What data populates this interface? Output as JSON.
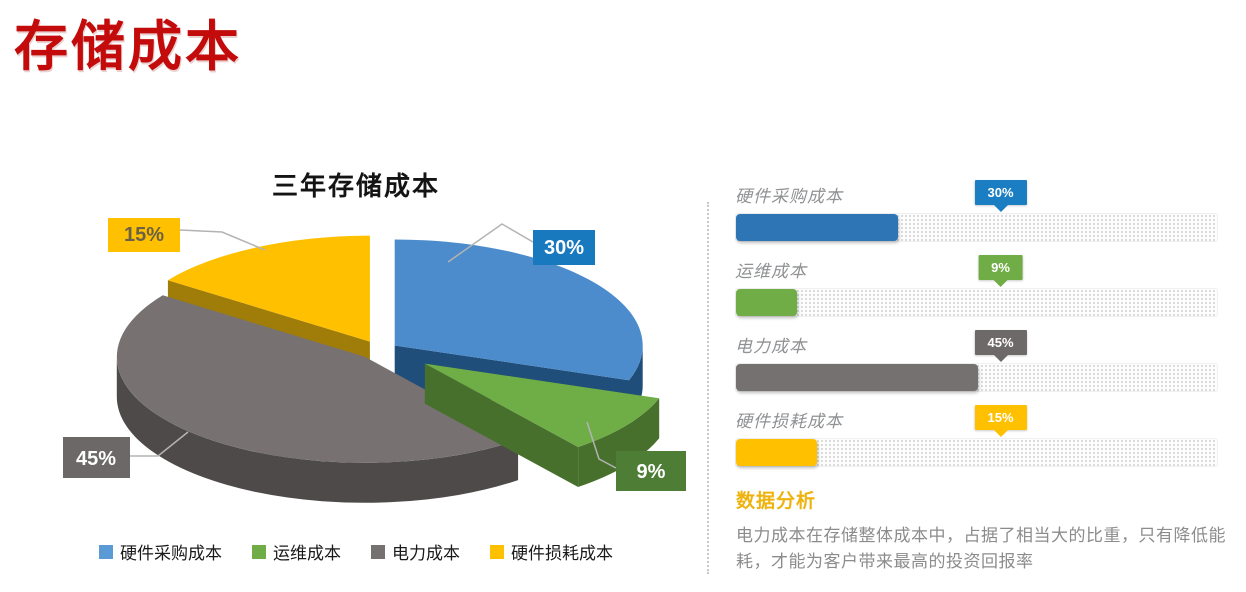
{
  "page": {
    "title": "存储成本"
  },
  "chart_data": {
    "type": "pie",
    "style": "3d-exploded",
    "title": "三年存储成本",
    "unit": "percent",
    "categories": [
      "硬件采购成本",
      "运维成本",
      "电力成本",
      "硬件损耗成本"
    ],
    "values": [
      30,
      9,
      45,
      15
    ],
    "colors": [
      "#4D8CCC",
      "#6FAD47",
      "#777171",
      "#FFC000"
    ],
    "legend_position": "bottom",
    "legend_colors": [
      "#5B9BD5",
      "#70AD47",
      "#767171",
      "#FFC000"
    ],
    "callouts": [
      {
        "text": "30%",
        "bg": "#1879BE",
        "fg": "#FFFFFF"
      },
      {
        "text": "9%",
        "bg": "#4E7E35",
        "fg": "#FFFFFF"
      },
      {
        "text": "45%",
        "bg": "#6D6868",
        "fg": "#FFFFFF"
      },
      {
        "text": "15%",
        "bg": "#FFC000",
        "fg": "#6B6145"
      }
    ]
  },
  "right_panel": {
    "rows": [
      {
        "label": "硬件采购成本",
        "value": 30,
        "pct": "30%",
        "bar_color": "#2E75B6",
        "tag_color": "#1B7EC2",
        "tag_text": "#FFFFFF"
      },
      {
        "label": "运维成本",
        "value": 9,
        "pct": "9%",
        "bar_color": "#70AD47",
        "tag_color": "#70AD47",
        "tag_text": "#FFFFFF"
      },
      {
        "label": "电力成本",
        "value": 45,
        "pct": "45%",
        "bar_color": "#767171",
        "tag_color": "#6E6969",
        "tag_text": "#FFFFFF"
      },
      {
        "label": "硬件损耗成本",
        "value": 15,
        "pct": "15%",
        "bar_color": "#FFC000",
        "tag_color": "#FFC000",
        "tag_text": "#FFFFFF"
      }
    ]
  },
  "analysis": {
    "heading": "数据分析",
    "body": "电力成本在存储整体成本中，占据了相当大的比重，只有降低能耗，才能为客户带来最高的投资回报率"
  }
}
